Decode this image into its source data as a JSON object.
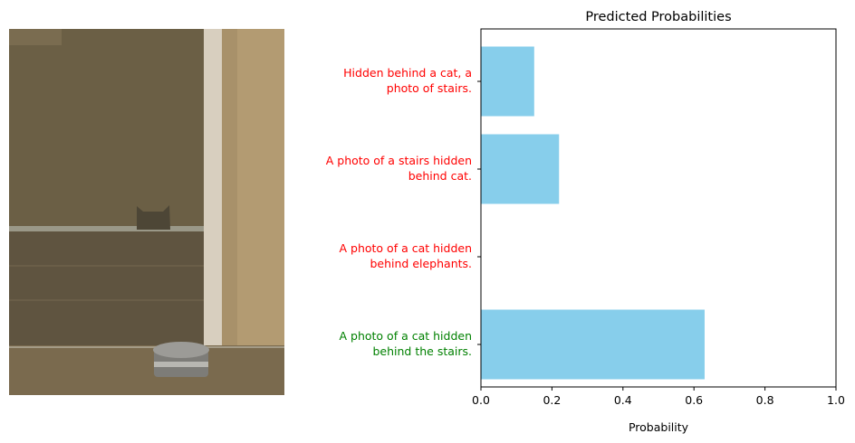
{
  "photo": {
    "description_icon": "photo-cat-behind-stairs",
    "colors": {
      "wall": "#6e6247",
      "door": "#a8916a",
      "bowl": "#8a8a85",
      "floor": "#7a6a4e"
    }
  },
  "chart_data": {
    "type": "bar",
    "orientation": "horizontal",
    "title": "Predicted Probabilities",
    "xlabel": "Probability",
    "ylabel": "",
    "xlim": [
      0,
      1
    ],
    "xticks": [
      "0.0",
      "0.2",
      "0.4",
      "0.6",
      "0.8",
      "1.0"
    ],
    "grid": false,
    "bar_color": "#87ceeb",
    "categories": [
      {
        "label_lines": [
          "Hidden behind a cat, a",
          "photo of stairs."
        ],
        "value": 0.15,
        "label_color": "#ff0000"
      },
      {
        "label_lines": [
          "A photo of a stairs hidden",
          "behind cat."
        ],
        "value": 0.22,
        "label_color": "#ff0000"
      },
      {
        "label_lines": [
          "A photo of a cat hidden",
          "behind elephants."
        ],
        "value": 0.0,
        "label_color": "#ff0000"
      },
      {
        "label_lines": [
          "A photo of a cat hidden",
          "behind the stairs."
        ],
        "value": 0.63,
        "label_color": "#008000"
      }
    ]
  }
}
